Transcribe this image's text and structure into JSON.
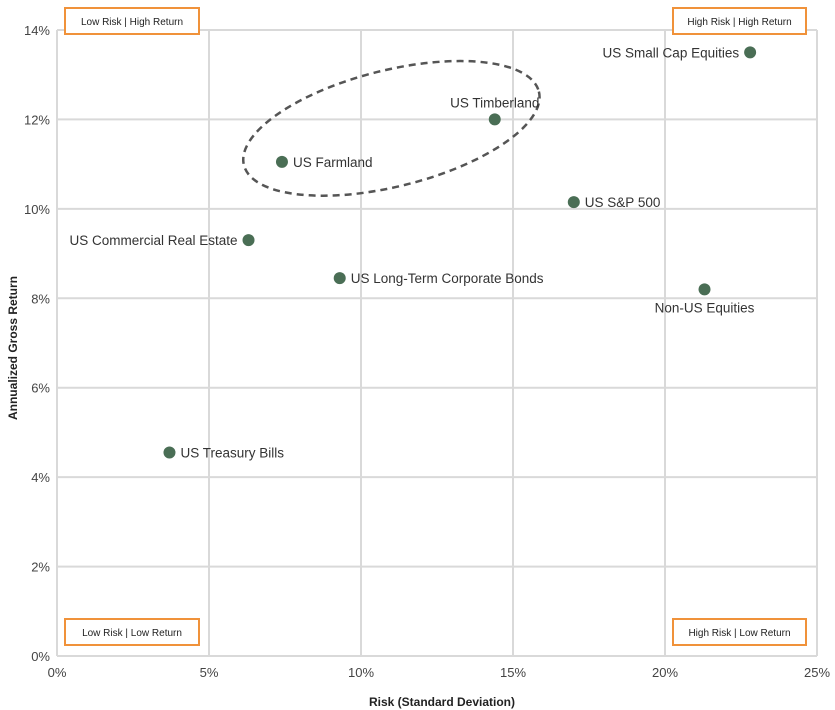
{
  "chart_data": {
    "type": "scatter",
    "title": "",
    "xlabel": "Risk (Standard Deviation)",
    "ylabel": "Annualized Gross Return",
    "xlim": [
      0,
      25
    ],
    "ylim": [
      0,
      14
    ],
    "x_ticks": [
      0,
      5,
      10,
      15,
      20,
      25
    ],
    "y_ticks": [
      0,
      2,
      4,
      6,
      8,
      10,
      12,
      14
    ],
    "x_tick_labels": [
      "0%",
      "5%",
      "10%",
      "15%",
      "20%",
      "25%"
    ],
    "y_tick_labels": [
      "0%",
      "2%",
      "4%",
      "6%",
      "8%",
      "10%",
      "12%",
      "14%"
    ],
    "grid": true,
    "marker_color": "#4a6e55",
    "quadrant_border_color": "#f0923a",
    "points": [
      {
        "label": "US Treasury Bills",
        "x": 3.7,
        "y": 4.55,
        "label_pos": "right"
      },
      {
        "label": "US Commercial Real Estate",
        "x": 6.3,
        "y": 9.3,
        "label_pos": "left"
      },
      {
        "label": "US Farmland",
        "x": 7.4,
        "y": 11.05,
        "label_pos": "right"
      },
      {
        "label": "US Long-Term Corporate Bonds",
        "x": 9.3,
        "y": 8.45,
        "label_pos": "right"
      },
      {
        "label": "US Timberland",
        "x": 14.4,
        "y": 12.0,
        "label_pos": "above"
      },
      {
        "label": "US S&P 500",
        "x": 17.0,
        "y": 10.15,
        "label_pos": "right"
      },
      {
        "label": "Non-US Equities",
        "x": 21.3,
        "y": 8.2,
        "label_pos": "below"
      },
      {
        "label": "US Small Cap Equities",
        "x": 22.8,
        "y": 13.5,
        "label_pos": "left"
      }
    ],
    "highlight_ellipse": {
      "cx": 11.0,
      "cy": 11.8,
      "rx": 5.0,
      "ry": 1.3
    },
    "quadrant_labels": {
      "top_left": "Low Risk | High Return",
      "top_right": "High Risk | High Return",
      "bottom_left": "Low Risk | Low Return",
      "bottom_right": "High Risk | Low Return"
    }
  }
}
